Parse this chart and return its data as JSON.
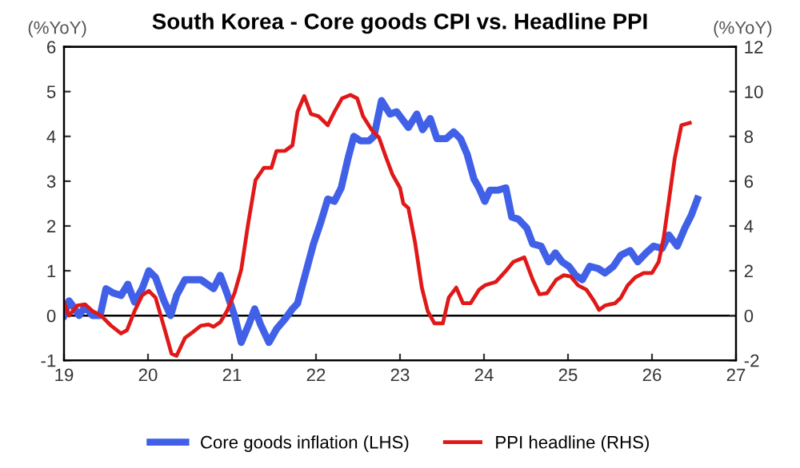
{
  "chart_data": {
    "type": "line",
    "title": "South Korea - Core goods CPI vs. Headline PPI",
    "ylabel": "(%YoY)",
    "y2label": "(%YoY)",
    "xlim": [
      19,
      27
    ],
    "xticks": [
      19,
      20,
      21,
      22,
      23,
      24,
      25,
      26,
      27
    ],
    "ylim": [
      -1,
      6
    ],
    "yticks": [
      -1,
      0,
      1,
      2,
      3,
      4,
      5,
      6
    ],
    "y2lim": [
      -2,
      12
    ],
    "y2ticks": [
      -2,
      0,
      2,
      4,
      6,
      8,
      10,
      12
    ],
    "grid": false,
    "legend": "bottom",
    "ref_lines": [
      {
        "axis": "y",
        "value": 0,
        "color": "#000000"
      }
    ],
    "series": [
      {
        "name": "Core goods inflation (LHS)",
        "color": "#4060e8",
        "x": [
          19.0,
          19.06,
          19.11,
          19.18,
          19.25,
          19.34,
          19.43,
          19.5,
          19.59,
          19.68,
          19.76,
          19.84,
          19.93,
          20.01,
          20.09,
          20.19,
          20.27,
          20.34,
          20.44,
          20.53,
          20.63,
          20.72,
          20.78,
          20.86,
          20.94,
          21.03,
          21.11,
          21.2,
          21.27,
          21.34,
          21.44,
          21.53,
          21.63,
          21.72,
          21.78,
          21.88,
          21.97,
          22.06,
          22.14,
          22.22,
          22.3,
          22.38,
          22.45,
          22.53,
          22.63,
          22.69,
          22.78,
          22.88,
          22.96,
          23.02,
          23.1,
          23.2,
          23.27,
          23.36,
          23.44,
          23.55,
          23.64,
          23.72,
          23.8,
          23.88,
          23.94,
          24.01,
          24.07,
          24.17,
          24.26,
          24.33,
          24.41,
          24.51,
          24.58,
          24.68,
          24.77,
          24.85,
          24.93,
          25.01,
          25.09,
          25.17,
          25.26,
          25.36,
          25.44,
          25.54,
          25.63,
          25.74,
          25.83,
          25.93,
          26.02,
          26.12,
          26.2,
          26.3,
          26.39,
          26.47,
          26.54
        ],
        "values": [
          0,
          0.33,
          0.2,
          0,
          0.2,
          0,
          0,
          0.6,
          0.5,
          0.45,
          0.7,
          0.3,
          0.6,
          1.0,
          0.85,
          0.33,
          0,
          0.45,
          0.8,
          0.8,
          0.8,
          0.68,
          0.6,
          0.9,
          0.5,
          0,
          -0.6,
          -0.2,
          0.15,
          -0.2,
          -0.6,
          -0.3,
          -0.08,
          0.15,
          0.27,
          0.97,
          1.6,
          2.1,
          2.6,
          2.55,
          2.85,
          3.5,
          4.0,
          3.9,
          3.9,
          4.0,
          4.8,
          4.5,
          4.55,
          4.4,
          4.2,
          4.5,
          4.15,
          4.4,
          3.95,
          3.95,
          4.1,
          3.95,
          3.6,
          3.05,
          2.85,
          2.55,
          2.8,
          2.8,
          2.85,
          2.2,
          2.15,
          1.95,
          1.6,
          1.55,
          1.2,
          1.4,
          1.2,
          1.1,
          0.9,
          0.8,
          1.1,
          1.05,
          0.95,
          1.1,
          1.35,
          1.45,
          1.2,
          1.4,
          1.55,
          1.5,
          1.8,
          1.55,
          1.95,
          2.25,
          2.6
        ]
      },
      {
        "name": "PPI headline (RHS)",
        "color": "#e01818",
        "axis": "y2",
        "x": [
          19.0,
          19.06,
          19.16,
          19.25,
          19.34,
          19.44,
          19.56,
          19.68,
          19.75,
          19.84,
          19.93,
          20.01,
          20.09,
          20.19,
          20.28,
          20.34,
          20.44,
          20.53,
          20.63,
          20.72,
          20.78,
          20.86,
          20.94,
          21.03,
          21.11,
          21.19,
          21.28,
          21.38,
          21.47,
          21.53,
          21.63,
          21.72,
          21.78,
          21.86,
          21.94,
          22.03,
          22.14,
          22.22,
          22.31,
          22.41,
          22.49,
          22.56,
          22.66,
          22.75,
          22.83,
          22.91,
          23.0,
          23.04,
          23.1,
          23.18,
          23.26,
          23.33,
          23.41,
          23.51,
          23.58,
          23.67,
          23.75,
          23.84,
          23.94,
          24.01,
          24.14,
          24.25,
          24.35,
          24.48,
          24.58,
          24.66,
          24.75,
          24.86,
          24.95,
          25.03,
          25.12,
          25.22,
          25.31,
          25.37,
          25.44,
          25.56,
          25.63,
          25.71,
          25.8,
          25.9,
          26.0,
          26.08,
          26.14,
          26.2,
          26.27,
          26.35,
          26.45
        ],
        "values": [
          0.6,
          0,
          0.45,
          0.5,
          0.2,
          0,
          -0.45,
          -0.8,
          -0.65,
          0.2,
          0.9,
          1.1,
          0.8,
          -0.5,
          -1.7,
          -1.8,
          -1.0,
          -0.75,
          -0.45,
          -0.4,
          -0.5,
          -0.3,
          0.2,
          1.0,
          2.05,
          4.05,
          6.05,
          6.6,
          6.6,
          7.35,
          7.35,
          7.6,
          9.1,
          9.8,
          9.0,
          8.9,
          8.5,
          9.1,
          9.7,
          9.85,
          9.7,
          8.9,
          8.3,
          7.95,
          7.1,
          6.3,
          5.7,
          5.0,
          4.8,
          3.25,
          1.25,
          0.2,
          -0.35,
          -0.35,
          0.8,
          1.25,
          0.55,
          0.55,
          1.15,
          1.35,
          1.5,
          1.95,
          2.4,
          2.6,
          1.6,
          0.95,
          1.0,
          1.6,
          1.8,
          1.75,
          1.35,
          1.15,
          0.65,
          0.25,
          0.45,
          0.55,
          0.8,
          1.35,
          1.7,
          1.9,
          1.9,
          2.4,
          3.5,
          5.1,
          7.0,
          8.5,
          8.6
        ]
      }
    ]
  }
}
